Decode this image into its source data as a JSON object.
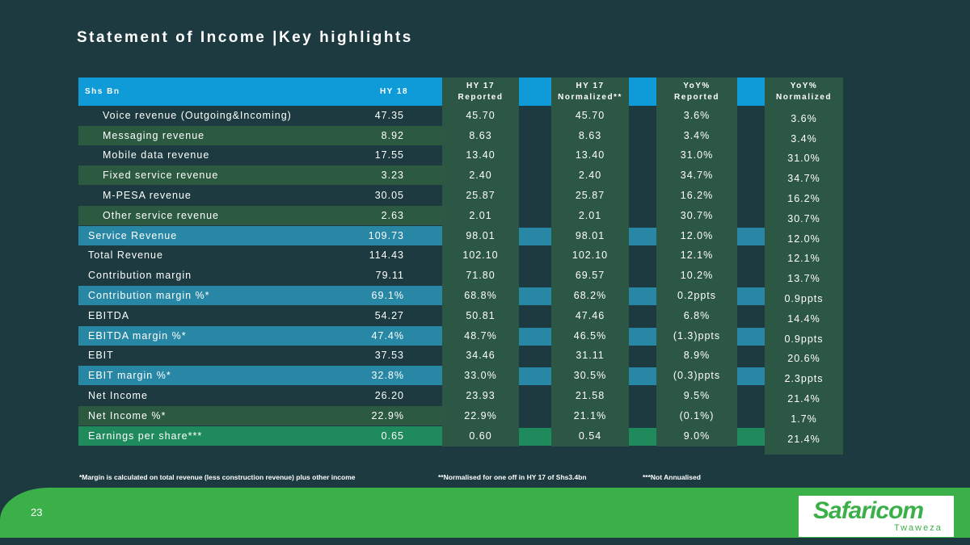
{
  "title": "Statement of Income |Key highlights",
  "table": {
    "headers": [
      "Shs Bn",
      "HY 18",
      "HY 17 Reported",
      "HY 17 Normalized**",
      "YoY% Reported",
      "YoY% Normalized"
    ],
    "rows": [
      [
        "Voice revenue (Outgoing&Incoming)",
        "47.35",
        "45.70",
        "45.70",
        "3.6%",
        "3.6%"
      ],
      [
        "Messaging revenue",
        "8.92",
        "8.63",
        "8.63",
        "3.4%",
        "3.4%"
      ],
      [
        "Mobile data revenue",
        "17.55",
        "13.40",
        "13.40",
        "31.0%",
        "31.0%"
      ],
      [
        "Fixed service revenue",
        "3.23",
        "2.40",
        "2.40",
        "34.7%",
        "34.7%"
      ],
      [
        "M-PESA revenue",
        "30.05",
        "25.87",
        "25.87",
        "16.2%",
        "16.2%"
      ],
      [
        "Other service revenue",
        "2.63",
        "2.01",
        "2.01",
        "30.7%",
        "30.7%"
      ],
      [
        "Service Revenue",
        "109.73",
        "98.01",
        "98.01",
        "12.0%",
        "12.0%"
      ],
      [
        "Total Revenue",
        "114.43",
        "102.10",
        "102.10",
        "12.1%",
        "12.1%"
      ],
      [
        "Contribution margin",
        "79.11",
        "71.80",
        "69.57",
        "10.2%",
        "13.7%"
      ],
      [
        "Contribution margin %*",
        "69.1%",
        "68.8%",
        "68.2%",
        "0.2ppts",
        "0.9ppts"
      ],
      [
        "EBITDA",
        "54.27",
        "50.81",
        "47.46",
        "6.8%",
        "14.4%"
      ],
      [
        "EBITDA margin %*",
        "47.4%",
        "48.7%",
        "46.5%",
        "(1.3)ppts",
        "0.9ppts"
      ],
      [
        "EBIT",
        "37.53",
        "34.46",
        "31.11",
        "8.9%",
        "20.6%"
      ],
      [
        "EBIT margin %*",
        "32.8%",
        "33.0%",
        "30.5%",
        "(0.3)ppts",
        "2.3ppts"
      ],
      [
        "Net Income",
        "26.20",
        "23.93",
        "21.58",
        "9.5%",
        "21.4%"
      ],
      [
        "Net Income %*",
        "22.9%",
        "22.9%",
        "21.1%",
        "(0.1%)",
        "1.7%"
      ],
      [
        "Earnings per share***",
        "0.65",
        "0.60",
        "0.54",
        "9.0%",
        "21.4%"
      ]
    ]
  },
  "footnotes": [
    "*Margin is calculated on total revenue (less construction revenue) plus other income",
    "**Normalised for one off in HY 17 of Shs3.4bn",
    "***Not Annualised"
  ],
  "page_number": "23",
  "logo": {
    "name": "Safaricom",
    "tagline": "Twaweza"
  }
}
